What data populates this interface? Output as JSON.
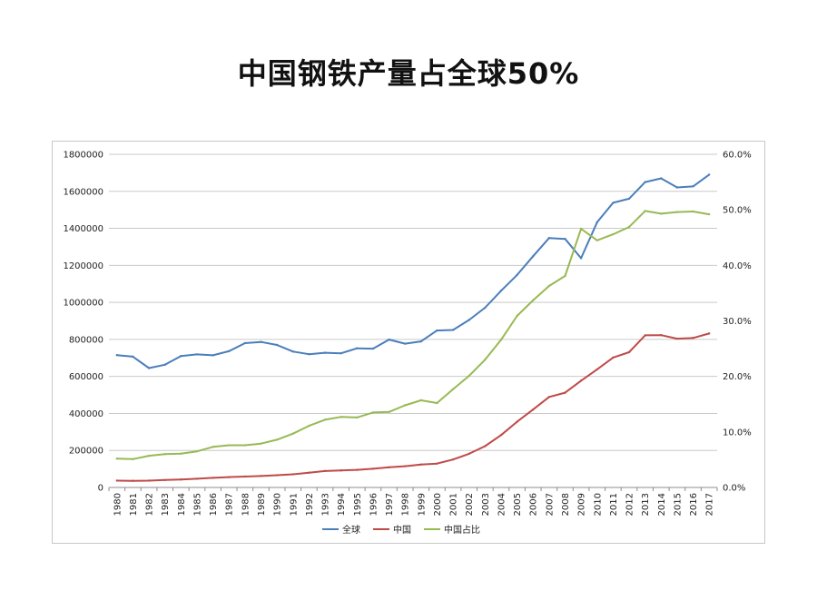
{
  "title": "中国钢铁产量占全球50%",
  "chart_data": {
    "type": "line",
    "title": "中国钢铁产量占全球50%",
    "x": [
      1980,
      1981,
      1982,
      1983,
      1984,
      1985,
      1986,
      1987,
      1988,
      1989,
      1990,
      1991,
      1992,
      1993,
      1994,
      1995,
      1996,
      1997,
      1998,
      1999,
      2000,
      2001,
      2002,
      2003,
      2004,
      2005,
      2006,
      2007,
      2008,
      2009,
      2010,
      2011,
      2012,
      2013,
      2014,
      2015,
      2016,
      2017
    ],
    "x_tick_labels": [
      "1980",
      "1981",
      "1982",
      "1983",
      "1984",
      "1985",
      "1986",
      "1987",
      "1988",
      "1989",
      "1990",
      "1991",
      "1992",
      "1993",
      "1994",
      "1995",
      "1996",
      "1997",
      "1998",
      "1999",
      "2000",
      "2001",
      "2002",
      "2003",
      "2004",
      "2005",
      "2006",
      "2007",
      "2008",
      "2009",
      "2010",
      "2011",
      "2012",
      "2013",
      "2014",
      "2015",
      "2016",
      "2017"
    ],
    "y_left": {
      "min": 0,
      "max": 1800000,
      "ticks": [
        0,
        200000,
        400000,
        600000,
        800000,
        1000000,
        1200000,
        1400000,
        1600000,
        1800000
      ],
      "tick_labels": [
        "0",
        "200000",
        "400000",
        "600000",
        "800000",
        "1000000",
        "1200000",
        "1400000",
        "1600000",
        "1800000"
      ]
    },
    "y_right": {
      "min": 0,
      "max": 60,
      "ticks": [
        0,
        10,
        20,
        30,
        40,
        50,
        60
      ],
      "tick_labels": [
        "0.0%",
        "10.0%",
        "20.0%",
        "30.0%",
        "40.0%",
        "50.0%",
        "60.0%"
      ]
    },
    "grid": "horizontal",
    "legend_position": "bottom",
    "series": [
      {
        "name": "全球",
        "axis": "left",
        "color": "#4a7ebb",
        "values": [
          715000,
          707000,
          645000,
          663000,
          710000,
          719000,
          714000,
          736000,
          780000,
          786000,
          770000,
          734000,
          720000,
          728000,
          725000,
          752000,
          750000,
          799000,
          777000,
          789000,
          848000,
          851000,
          905000,
          971000,
          1063000,
          1148000,
          1249000,
          1348000,
          1343000,
          1239000,
          1433000,
          1538000,
          1560000,
          1650000,
          1670000,
          1621000,
          1627000,
          1690000
        ]
      },
      {
        "name": "中国",
        "axis": "left",
        "color": "#be4b48",
        "values": [
          37000,
          36000,
          37000,
          40000,
          43000,
          47000,
          52000,
          56000,
          59000,
          62000,
          66000,
          71000,
          80000,
          89000,
          92000,
          95000,
          101000,
          109000,
          115000,
          124000,
          129000,
          151000,
          182000,
          223000,
          283000,
          355000,
          421000,
          489000,
          512000,
          577000,
          638000,
          702000,
          731000,
          822000,
          823000,
          804000,
          808000,
          832000
        ]
      },
      {
        "name": "中国占比",
        "axis": "right",
        "color": "#98b954",
        "values": [
          5.2,
          5.1,
          5.7,
          6.0,
          6.1,
          6.5,
          7.3,
          7.6,
          7.6,
          7.9,
          8.6,
          9.7,
          11.1,
          12.2,
          12.7,
          12.6,
          13.5,
          13.6,
          14.8,
          15.7,
          15.2,
          17.7,
          20.1,
          23.0,
          26.6,
          30.9,
          33.7,
          36.3,
          38.1,
          46.6,
          44.5,
          45.6,
          46.9,
          49.8,
          49.3,
          49.6,
          49.7,
          49.2
        ]
      }
    ]
  }
}
